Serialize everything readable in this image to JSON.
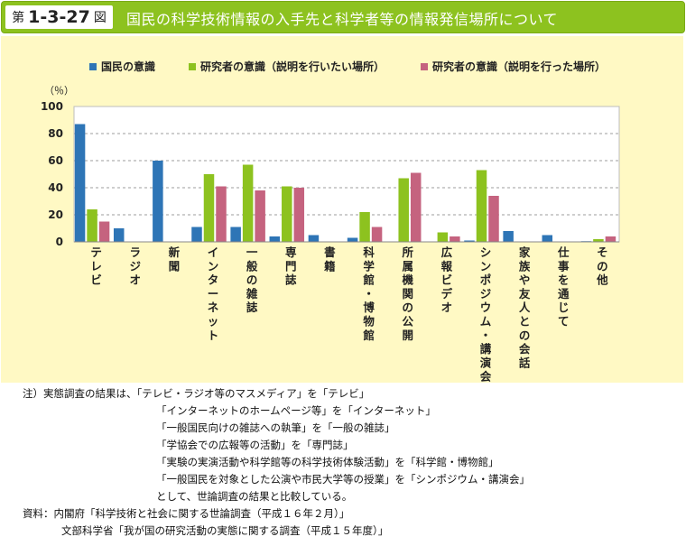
{
  "header": {
    "fig_prefix": "第",
    "fig_number": "1-3-27",
    "fig_suffix": "図",
    "title": "国民の科学技術情報の入手先と科学者等の情報発信場所について"
  },
  "chart_data": {
    "type": "bar",
    "title": "",
    "ylabel": "（％）",
    "ylim": [
      0,
      100
    ],
    "yticks": [
      0,
      20,
      40,
      60,
      80,
      100
    ],
    "grid": true,
    "legend_position": "top",
    "categories": [
      "テレビ",
      "ラジオ",
      "新聞",
      "インターネット",
      "一般の雑誌",
      "専門誌",
      "書籍",
      "科学館・博物館",
      "所属機関の公開",
      "広報ビデオ",
      "シンポジウム・講演会",
      "家族や友人との会話",
      "仕事を通じて",
      "その他"
    ],
    "series": [
      {
        "name": "国民の意識",
        "color": "#2e75b6",
        "values": [
          87,
          10,
          60,
          11,
          11,
          4,
          5,
          3,
          0,
          0,
          1,
          8,
          5,
          0.5
        ]
      },
      {
        "name": "研究者の意識（説明を行いたい場所）",
        "color": "#8dc21f",
        "values": [
          24,
          0,
          0,
          50,
          57,
          41,
          0,
          22,
          47,
          7,
          53,
          0,
          0,
          2
        ]
      },
      {
        "name": "研究者の意識（説明を行った場所）",
        "color": "#c5637f",
        "values": [
          15,
          0,
          0,
          41,
          38,
          40,
          0,
          11,
          51,
          4,
          34,
          0,
          0,
          4
        ]
      }
    ]
  },
  "notes": {
    "line1": "注）実態調査の結果は、「テレビ・ラジオ等のマスメディア」を「テレビ」",
    "line2": "「インターネットのホームページ等」を「インターネット」",
    "line3": "「一般国民向けの雑誌への執筆」を「一般の雑誌」",
    "line4": "「学協会での広報等の活動」を「専門誌」",
    "line5": "「実験の実演活動や科学館等の科学技術体験活動」を「科学館・博物館」",
    "line6": "「一般国民を対象とした公演や市民大学等の授業」を「シンポジウム・講演会」",
    "line7": "として、世論調査の結果と比較している。",
    "line8": "資料：内閣府「科学技術と社会に関する世論調査（平成１６年２月）」",
    "line9": "文部科学省「我が国の研究活動の実態に関する調査（平成１５年度）」"
  }
}
